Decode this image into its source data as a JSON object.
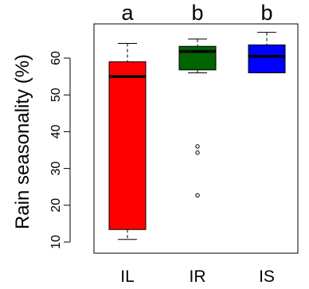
{
  "chart_data": {
    "type": "boxplot",
    "ylabel": "Rain seasonality (%)",
    "ylim": [
      9,
      70
    ],
    "yticks": [
      10,
      20,
      30,
      40,
      50,
      60
    ],
    "categories": [
      "IL",
      "IR",
      "IS"
    ],
    "group_letters": [
      "a",
      "b",
      "b"
    ],
    "boxes": [
      {
        "category": "IL",
        "whisker_low": 10.7,
        "q1": 13.4,
        "median": 55.0,
        "q3": 59.0,
        "whisker_high": 64.0,
        "outliers": [],
        "color": "#ff0000"
      },
      {
        "category": "IR",
        "whisker_low": 56.0,
        "q1": 56.8,
        "median": 61.8,
        "q3": 63.2,
        "whisker_high": 65.2,
        "outliers": [
          36.0,
          34.3,
          22.7
        ],
        "color": "#006400"
      },
      {
        "category": "IS",
        "whisker_low": 56.0,
        "q1": 56.0,
        "median": 60.5,
        "q3": 63.6,
        "whisker_high": 67.0,
        "outliers": [],
        "color": "#0000ff"
      }
    ]
  }
}
